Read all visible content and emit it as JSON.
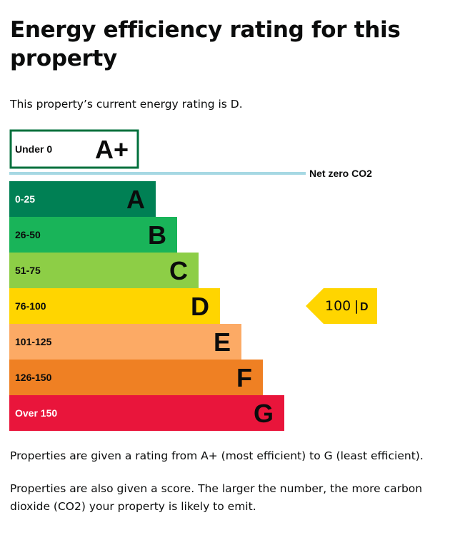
{
  "heading": "Energy efficiency rating for this property",
  "current_rating_text": "This property’s current energy rating is D.",
  "chart": {
    "aplus": {
      "range": "Under 0",
      "letter": "A+",
      "color": "#00703c"
    },
    "net_zero_label": "Net zero CO2",
    "net_zero_color": "#a6d8e3",
    "bands": [
      {
        "range": "0-25",
        "letter": "A",
        "color": "#008054",
        "text_color": "#ffffff"
      },
      {
        "range": "26-50",
        "letter": "B",
        "color": "#19b459",
        "text_color": "#0b0c0c"
      },
      {
        "range": "51-75",
        "letter": "C",
        "color": "#8dce46",
        "text_color": "#0b0c0c"
      },
      {
        "range": "76-100",
        "letter": "D",
        "color": "#ffd500",
        "text_color": "#0b0c0c"
      },
      {
        "range": "101-125",
        "letter": "E",
        "color": "#fcaa65",
        "text_color": "#0b0c0c"
      },
      {
        "range": "126-150",
        "letter": "F",
        "color": "#ef8023",
        "text_color": "#0b0c0c"
      },
      {
        "range": "Over 150",
        "letter": "G",
        "color": "#e9153b",
        "text_color": "#ffffff"
      }
    ],
    "current": {
      "score": "100",
      "separator": "|",
      "letter": "D",
      "color": "#ffd500"
    }
  },
  "explanation_1": "Properties are given a rating from A+ (most efficient) to G (least efficient).",
  "explanation_2": "Properties are also given a score. The larger the number, the more carbon dioxide (CO2) your property is likely to emit."
}
